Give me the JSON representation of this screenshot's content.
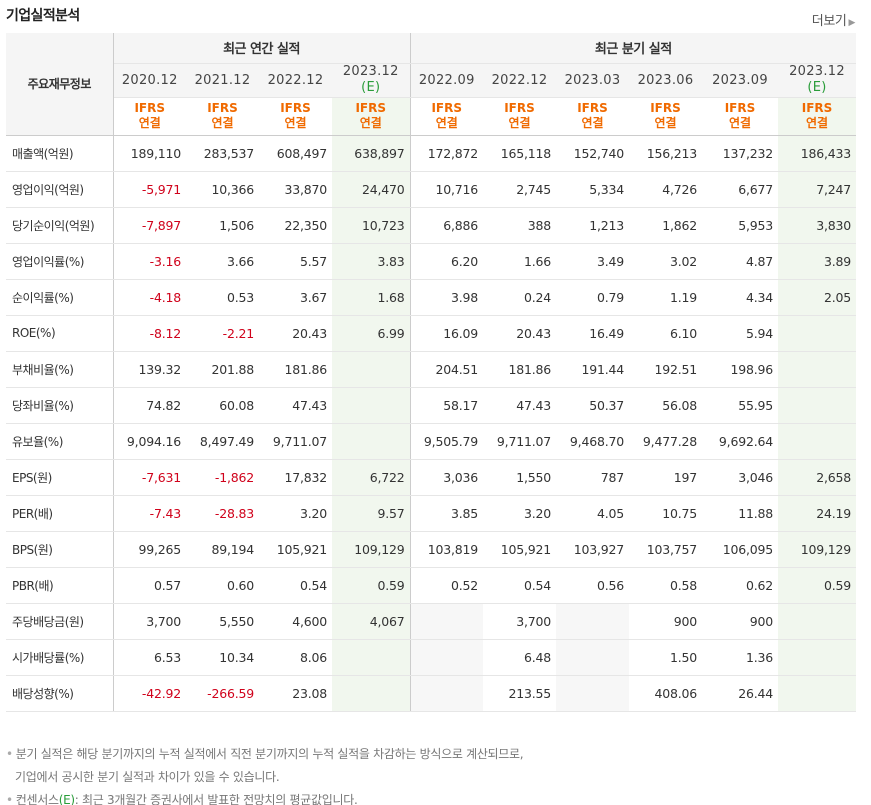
{
  "header": {
    "title": "기업실적분석",
    "more_label": "더보기"
  },
  "table": {
    "corner_label": "주요재무정보",
    "annual_group": "최근 연간 실적",
    "quarter_group": "최근 분기 실적",
    "periods": [
      "2020.12",
      "2021.12",
      "2022.12",
      "2023.12",
      "2022.09",
      "2022.12",
      "2023.03",
      "2023.06",
      "2023.09",
      "2023.12"
    ],
    "estimate_marker": "(E)",
    "ifrs_line1": "IFRS",
    "ifrs_line2": "연결",
    "rows": [
      {
        "label": "매출액(억원)",
        "values": [
          "189,110",
          "283,537",
          "608,497",
          "638,897",
          "172,872",
          "165,118",
          "152,740",
          "156,213",
          "137,232",
          "186,433"
        ]
      },
      {
        "label": "영업이익(억원)",
        "values": [
          "-5,971",
          "10,366",
          "33,870",
          "24,470",
          "10,716",
          "2,745",
          "5,334",
          "4,726",
          "6,677",
          "7,247"
        ]
      },
      {
        "label": "당기순이익(억원)",
        "values": [
          "-7,897",
          "1,506",
          "22,350",
          "10,723",
          "6,886",
          "388",
          "1,213",
          "1,862",
          "5,953",
          "3,830"
        ]
      },
      {
        "label": "영업이익률(%)",
        "values": [
          "-3.16",
          "3.66",
          "5.57",
          "3.83",
          "6.20",
          "1.66",
          "3.49",
          "3.02",
          "4.87",
          "3.89"
        ]
      },
      {
        "label": "순이익률(%)",
        "values": [
          "-4.18",
          "0.53",
          "3.67",
          "1.68",
          "3.98",
          "0.24",
          "0.79",
          "1.19",
          "4.34",
          "2.05"
        ]
      },
      {
        "label": "ROE(%)",
        "values": [
          "-8.12",
          "-2.21",
          "20.43",
          "6.99",
          "16.09",
          "20.43",
          "16.49",
          "6.10",
          "5.94",
          ""
        ]
      },
      {
        "label": "부채비율(%)",
        "values": [
          "139.32",
          "201.88",
          "181.86",
          "",
          "204.51",
          "181.86",
          "191.44",
          "192.51",
          "198.96",
          ""
        ]
      },
      {
        "label": "당좌비율(%)",
        "values": [
          "74.82",
          "60.08",
          "47.43",
          "",
          "58.17",
          "47.43",
          "50.37",
          "56.08",
          "55.95",
          ""
        ]
      },
      {
        "label": "유보율(%)",
        "values": [
          "9,094.16",
          "8,497.49",
          "9,711.07",
          "",
          "9,505.79",
          "9,711.07",
          "9,468.70",
          "9,477.28",
          "9,692.64",
          ""
        ]
      },
      {
        "label": "EPS(원)",
        "values": [
          "-7,631",
          "-1,862",
          "17,832",
          "6,722",
          "3,036",
          "1,550",
          "787",
          "197",
          "3,046",
          "2,658"
        ]
      },
      {
        "label": "PER(배)",
        "values": [
          "-7.43",
          "-28.83",
          "3.20",
          "9.57",
          "3.85",
          "3.20",
          "4.05",
          "10.75",
          "11.88",
          "24.19"
        ]
      },
      {
        "label": "BPS(원)",
        "values": [
          "99,265",
          "89,194",
          "105,921",
          "109,129",
          "103,819",
          "105,921",
          "103,927",
          "103,757",
          "106,095",
          "109,129"
        ]
      },
      {
        "label": "PBR(배)",
        "values": [
          "0.57",
          "0.60",
          "0.54",
          "0.59",
          "0.52",
          "0.54",
          "0.56",
          "0.58",
          "0.62",
          "0.59"
        ]
      },
      {
        "label": "주당배당금(원)",
        "values": [
          "3,700",
          "5,550",
          "4,600",
          "4,067",
          "",
          "3,700",
          "",
          "900",
          "900",
          ""
        ]
      },
      {
        "label": "시가배당률(%)",
        "values": [
          "6.53",
          "10.34",
          "8.06",
          "",
          "",
          "6.48",
          "",
          "1.50",
          "1.36",
          ""
        ]
      },
      {
        "label": "배당성향(%)",
        "values": [
          "-42.92",
          "-266.59",
          "23.08",
          "",
          "",
          "213.55",
          "",
          "408.06",
          "26.44",
          ""
        ]
      }
    ]
  },
  "notes": {
    "line1": "분기 실적은 해당 분기까지의 누적 실적에서 직전 분기까지의 누적 실적을 차감하는 방식으로 계산되므로,",
    "line2": "기업에서 공시한 분기 실적과 차이가 있을 수 있습니다.",
    "line3_prefix": "컨센서스",
    "line3_marker": "(E)",
    "line3_suffix": ": 최근 3개월간 증권사에서 발표한 전망치의 평균값입니다."
  },
  "colors": {
    "negative": "#d0021b",
    "ifrs": "#f06a00",
    "estimate": "#2a9d3a",
    "estimate_bg": "#f1f7ee"
  }
}
